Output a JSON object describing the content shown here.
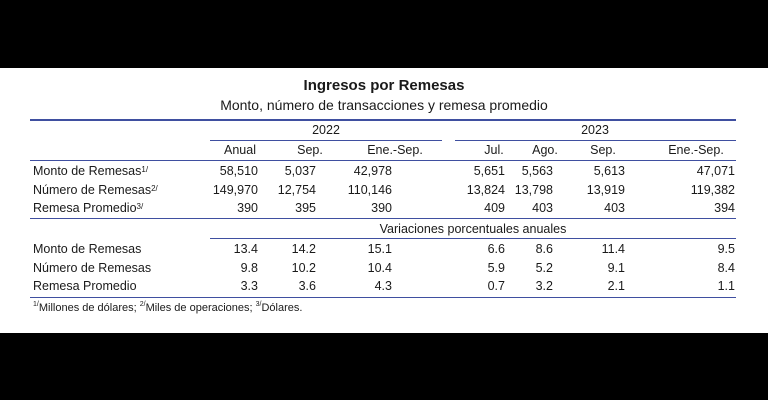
{
  "title": "Ingresos por Remesas",
  "subtitle": "Monto, número de transacciones y remesa promedio",
  "years": [
    "2022",
    "2023"
  ],
  "columns": [
    "Anual",
    "Sep.",
    "Ene.-Sep.",
    "Jul.",
    "Ago.",
    "Sep.",
    "Ene.-Sep."
  ],
  "section1": {
    "rows": [
      {
        "label": "Monto de Remesas",
        "sup": "1/",
        "values": [
          "58,510",
          "5,037",
          "42,978",
          "5,651",
          "5,563",
          "5,613",
          "47,071"
        ]
      },
      {
        "label": "Número de Remesas",
        "sup": "2/",
        "values": [
          "149,970",
          "12,754",
          "110,146",
          "13,824",
          "13,798",
          "13,919",
          "119,382"
        ]
      },
      {
        "label": "Remesa Promedio",
        "sup": "3/",
        "values": [
          "390",
          "395",
          "390",
          "409",
          "403",
          "403",
          "394"
        ]
      }
    ]
  },
  "section2": {
    "heading": "Variaciones porcentuales anuales",
    "rows": [
      {
        "label": "Monto de Remesas",
        "values": [
          "13.4",
          "14.2",
          "15.1",
          "6.6",
          "8.6",
          "11.4",
          "9.5"
        ]
      },
      {
        "label": "Número de Remesas",
        "values": [
          "9.8",
          "10.2",
          "10.4",
          "5.9",
          "5.2",
          "9.1",
          "8.4"
        ]
      },
      {
        "label": "Remesa Promedio",
        "values": [
          "3.3",
          "3.6",
          "4.3",
          "0.7",
          "3.2",
          "2.1",
          "1.1"
        ]
      }
    ]
  },
  "footnote": [
    {
      "sup": "1/",
      "text": "Millones de dólares; "
    },
    {
      "sup": "2/",
      "text": "Miles de operaciones; "
    },
    {
      "sup": "3/",
      "text": "Dólares."
    }
  ]
}
